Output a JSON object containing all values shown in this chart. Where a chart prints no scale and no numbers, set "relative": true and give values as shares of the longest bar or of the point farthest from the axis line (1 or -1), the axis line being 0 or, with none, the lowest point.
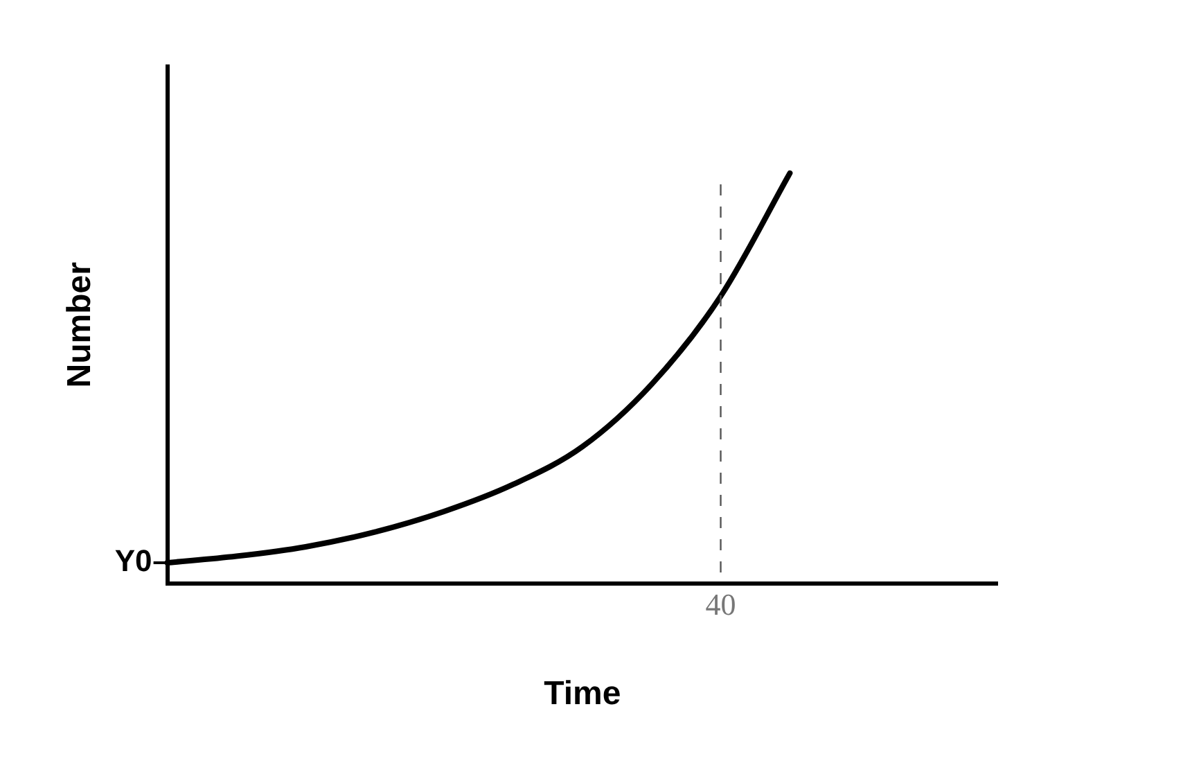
{
  "chart_data": {
    "type": "line",
    "relative": true,
    "xlabel": "Time",
    "ylabel": "Number",
    "categories": [
      null,
      null,
      null,
      null,
      null,
      null,
      null,
      null,
      null,
      null,
      null,
      null,
      null
    ],
    "series": [
      {
        "color": "#000000",
        "values": [
          0.05,
          0.066,
          0.089,
          0.125,
          0.175,
          0.241,
          0.333,
          0.485,
          0.7,
          1,
          null,
          null,
          null
        ]
      }
    ],
    "annotations": [
      "Y0",
      "40"
    ],
    "grid": false,
    "legend": false,
    "marker": "none",
    "line_style": "solid"
  }
}
